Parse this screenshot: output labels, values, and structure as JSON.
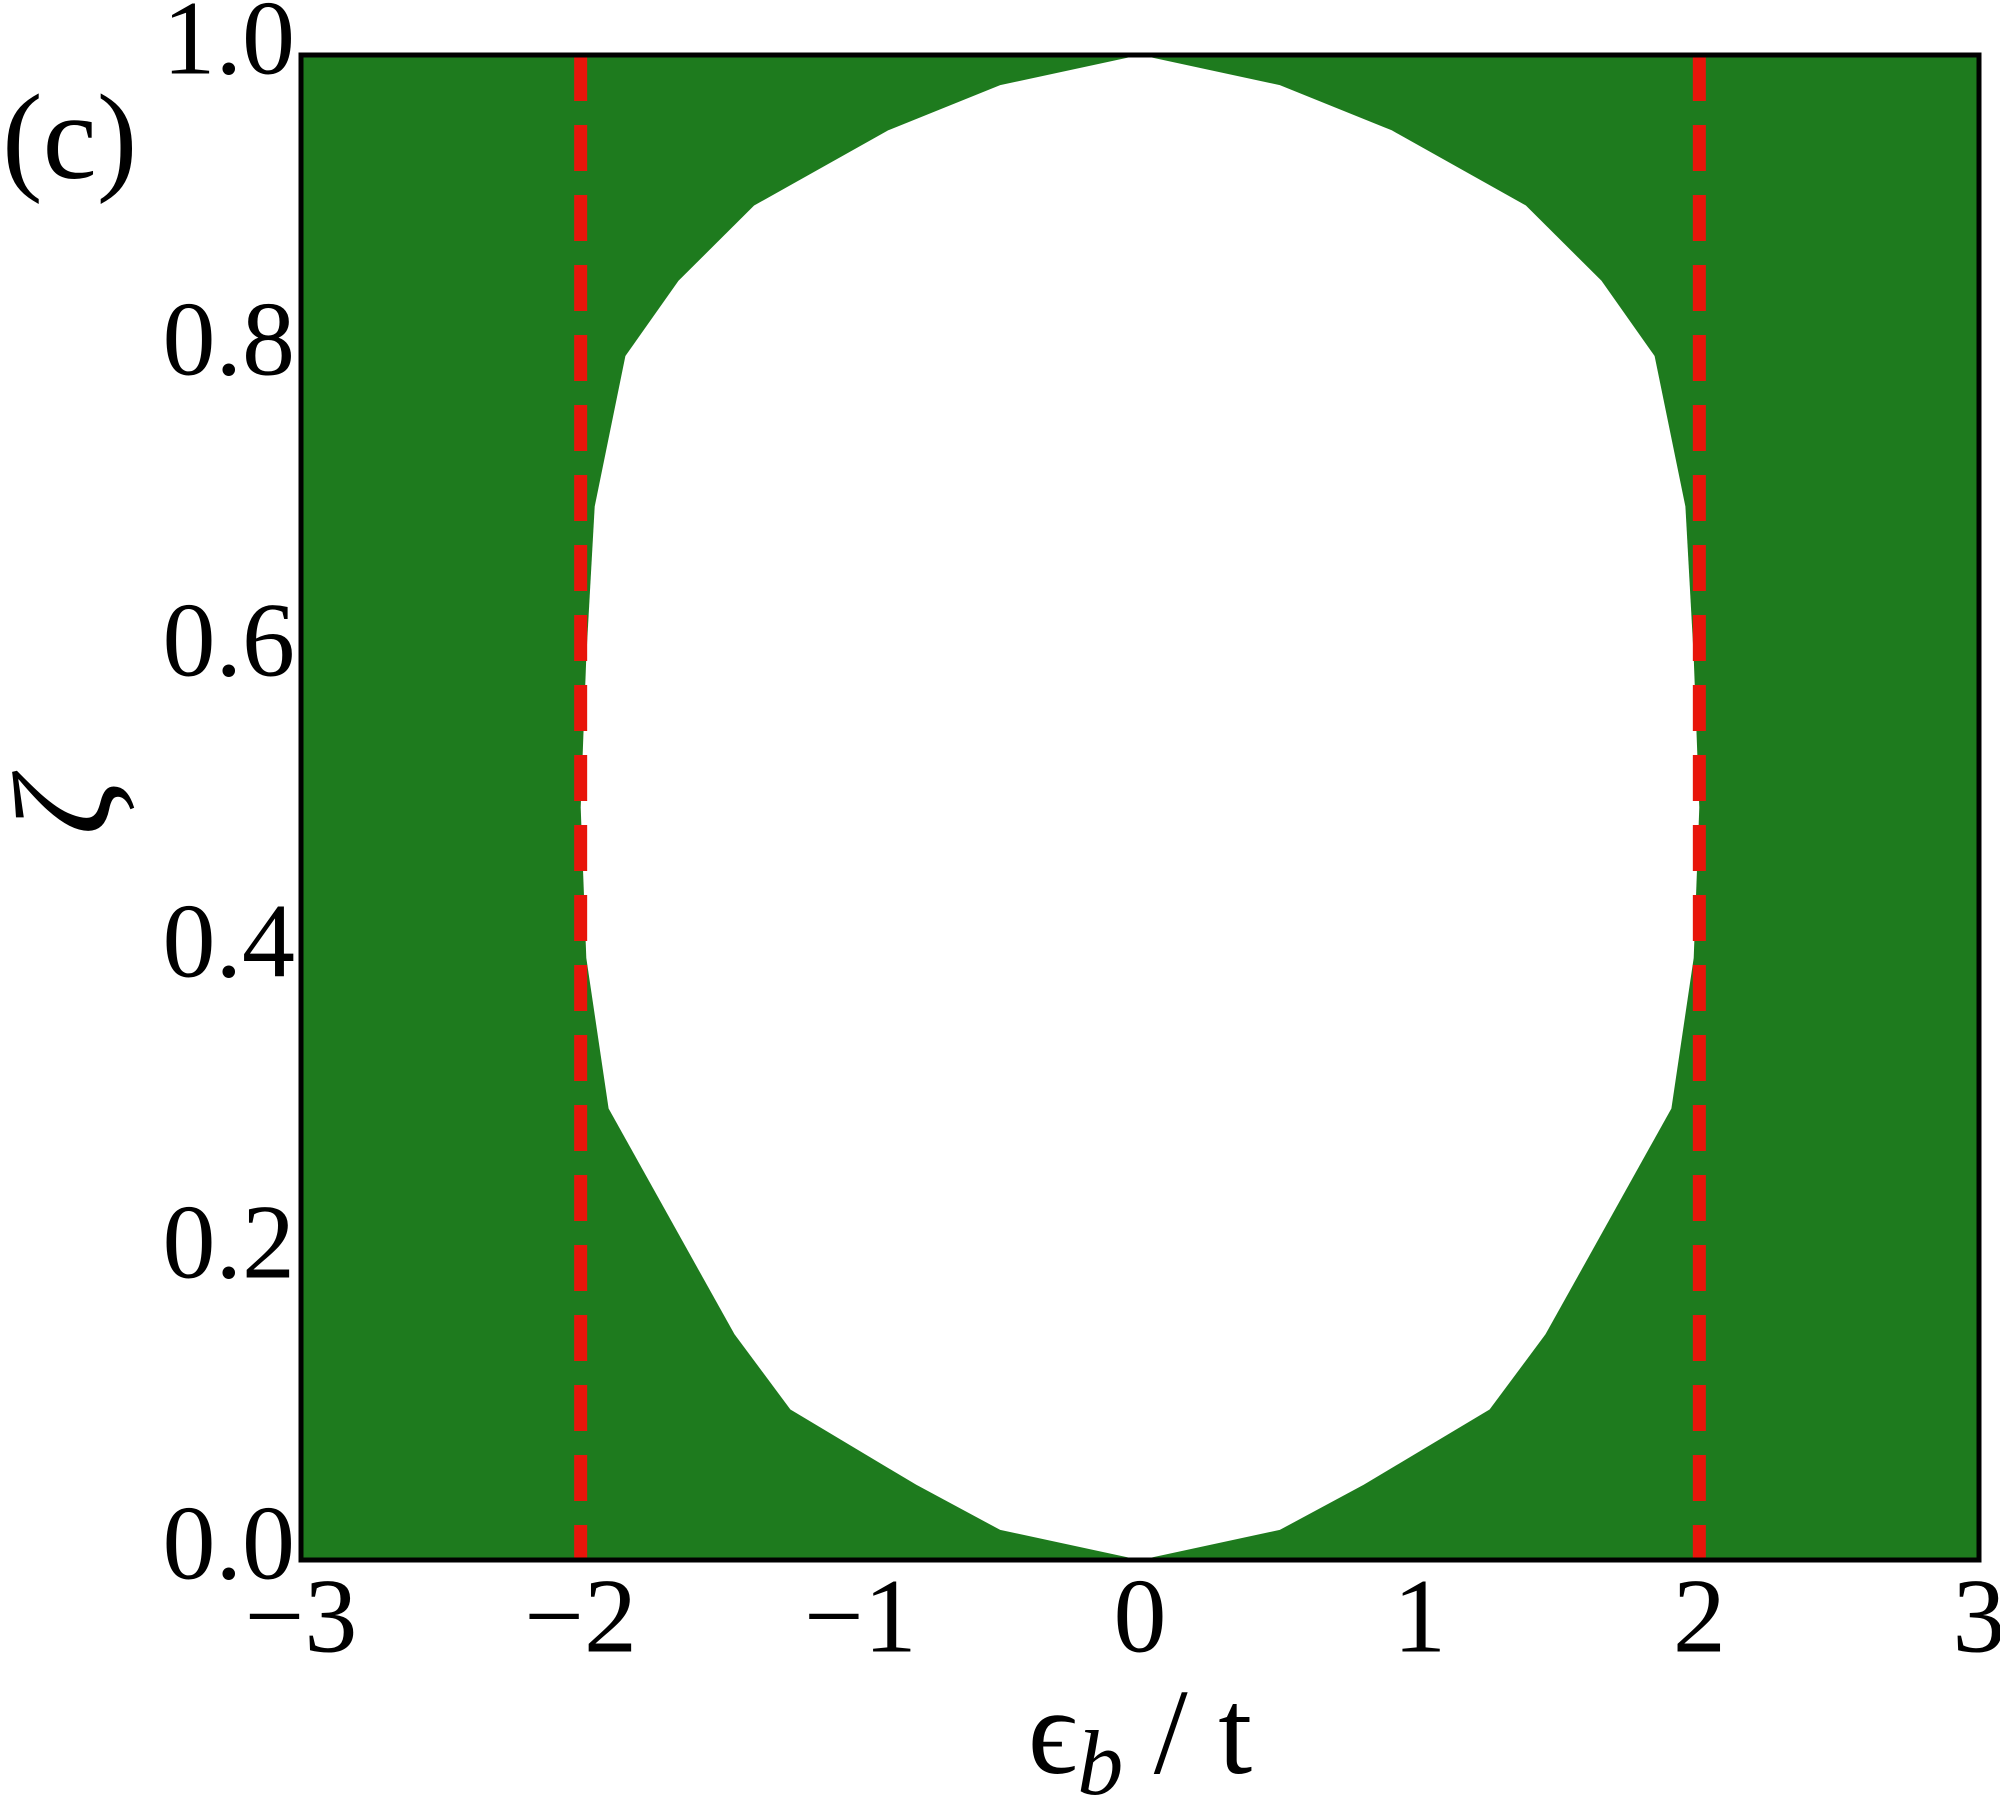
{
  "chart_data": {
    "type": "region",
    "panel_label": "(c)",
    "xlabel": {
      "symbol": "ϵ",
      "subscript": "b",
      "suffix": " / t"
    },
    "ylabel": "ζ",
    "xlim": [
      -3,
      3
    ],
    "ylim": [
      0,
      1
    ],
    "xticks": [
      {
        "value": -3,
        "label": "−3"
      },
      {
        "value": -2,
        "label": "−2"
      },
      {
        "value": -1,
        "label": "−1"
      },
      0,
      1,
      2,
      3
    ],
    "yticks": [
      {
        "value": 0,
        "label": "0.0"
      },
      0.2,
      0.4,
      0.6,
      0.8,
      {
        "value": 1,
        "label": "1.0"
      }
    ],
    "fill_color": "#1e7b1e",
    "gap": {
      "color": "#ffffff",
      "x": [
        0,
        0.5,
        0.8,
        1.25,
        1.45,
        1.6,
        1.9,
        1.98,
        2.0,
        1.98,
        1.95,
        1.84,
        1.65,
        1.38,
        0.9,
        0.5,
        0,
        -0.5,
        -0.9,
        -1.38,
        -1.65,
        -1.84,
        -1.95,
        -1.98,
        -2.0,
        -1.98,
        -1.9,
        -1.6,
        -1.45,
        -1.25,
        -0.8,
        -0.5,
        0
      ],
      "y": [
        0,
        0.02,
        0.05,
        0.1,
        0.15,
        0.2,
        0.3,
        0.4,
        0.5,
        0.6,
        0.7,
        0.8,
        0.85,
        0.9,
        0.95,
        0.98,
        1.0,
        0.98,
        0.95,
        0.9,
        0.85,
        0.8,
        0.7,
        0.6,
        0.5,
        0.4,
        0.3,
        0.2,
        0.15,
        0.1,
        0.05,
        0.02,
        0
      ]
    },
    "vlines": {
      "values": [
        -2,
        2
      ],
      "color": "#e8150b"
    },
    "grid": false
  }
}
